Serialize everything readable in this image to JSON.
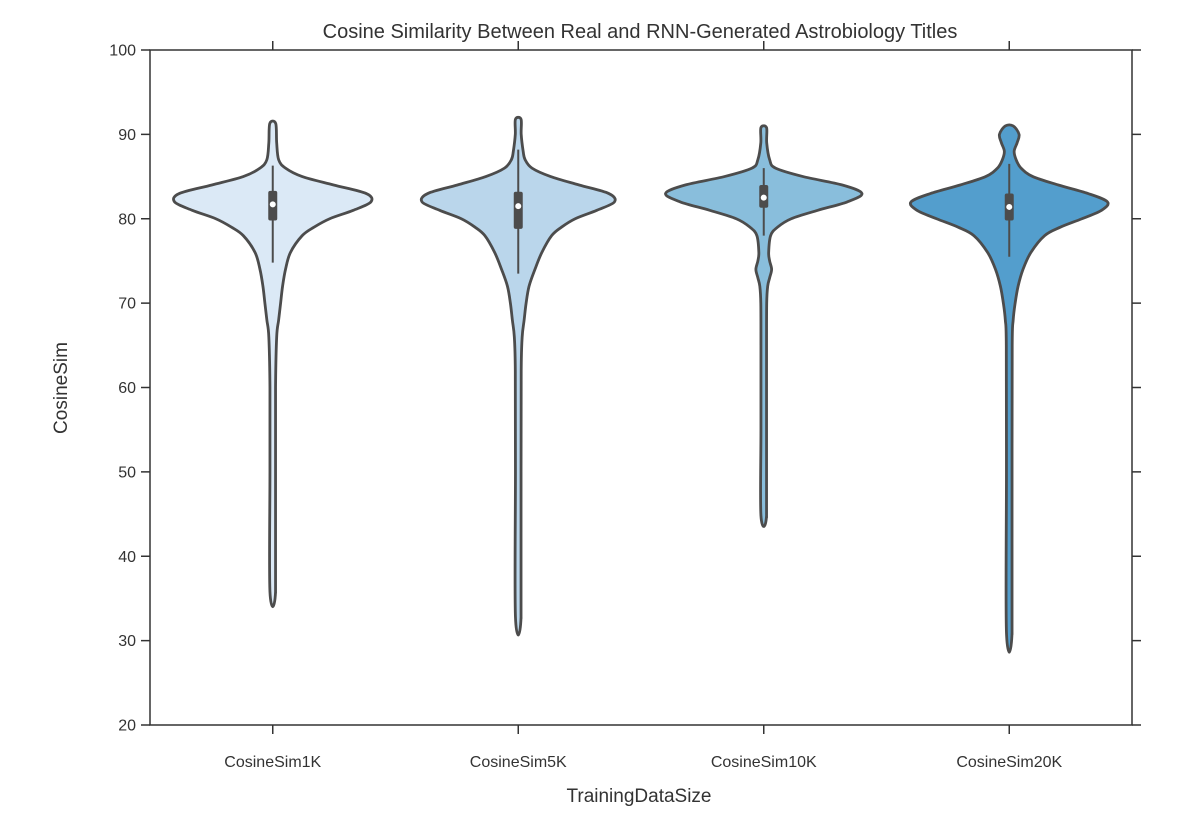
{
  "chart_data": {
    "type": "violin",
    "title": "Cosine Similarity Between Real and RNN-Generated Astrobiology Titles",
    "xlabel": "TrainingDataSize",
    "ylabel": "CosineSim",
    "ylim": [
      20,
      100
    ],
    "yticks": [
      20,
      30,
      40,
      50,
      60,
      70,
      80,
      90,
      100
    ],
    "grid": false,
    "categories": [
      "CosineSim1K",
      "CosineSim5K",
      "CosineSim10K",
      "CosineSim20K"
    ],
    "series": [
      {
        "category": "CosineSim1K",
        "min": 35.8,
        "max": 91.3,
        "q1": 79.8,
        "median": 81.7,
        "q3": 83.3,
        "whisker_low": 74.8,
        "whisker_high": 86.3,
        "color": "#dbe9f6",
        "density": [
          [
            35.8,
            0.02
          ],
          [
            50,
            0.02
          ],
          [
            60,
            0.025
          ],
          [
            66,
            0.04
          ],
          [
            68,
            0.06
          ],
          [
            70,
            0.08
          ],
          [
            72,
            0.1
          ],
          [
            74,
            0.13
          ],
          [
            76,
            0.18
          ],
          [
            78,
            0.3
          ],
          [
            79,
            0.42
          ],
          [
            80,
            0.58
          ],
          [
            81,
            0.82
          ],
          [
            82,
            1.0
          ],
          [
            83,
            0.95
          ],
          [
            84,
            0.62
          ],
          [
            85,
            0.3
          ],
          [
            86,
            0.13
          ],
          [
            87,
            0.06
          ],
          [
            89,
            0.04
          ],
          [
            91.3,
            0.03
          ]
        ]
      },
      {
        "category": "CosineSim5K",
        "min": 32.8,
        "max": 91.8,
        "q1": 78.8,
        "median": 81.5,
        "q3": 83.2,
        "whisker_low": 73.5,
        "whisker_high": 88.2,
        "color": "#bad6eb",
        "density": [
          [
            32.8,
            0.02
          ],
          [
            50,
            0.02
          ],
          [
            62,
            0.03
          ],
          [
            66,
            0.04
          ],
          [
            68,
            0.06
          ],
          [
            70,
            0.08
          ],
          [
            72,
            0.11
          ],
          [
            74,
            0.17
          ],
          [
            76,
            0.24
          ],
          [
            78,
            0.34
          ],
          [
            79,
            0.44
          ],
          [
            80,
            0.58
          ],
          [
            81,
            0.8
          ],
          [
            82,
            0.98
          ],
          [
            83,
            0.92
          ],
          [
            84,
            0.62
          ],
          [
            85,
            0.33
          ],
          [
            86,
            0.14
          ],
          [
            87,
            0.07
          ],
          [
            88,
            0.05
          ],
          [
            90,
            0.03
          ],
          [
            91.8,
            0.02
          ]
        ]
      },
      {
        "category": "CosineSim10K",
        "min": 44.8,
        "max": 90.8,
        "q1": 81.3,
        "median": 82.5,
        "q3": 84.0,
        "whisker_low": 78.0,
        "whisker_high": 86.0,
        "color": "#89bedc",
        "density": [
          [
            44.8,
            0.02
          ],
          [
            55,
            0.02
          ],
          [
            65,
            0.025
          ],
          [
            70,
            0.03
          ],
          [
            72,
            0.04
          ],
          [
            73,
            0.06
          ],
          [
            74,
            0.08
          ],
          [
            75,
            0.06
          ],
          [
            76,
            0.05
          ],
          [
            78,
            0.07
          ],
          [
            79,
            0.14
          ],
          [
            80,
            0.28
          ],
          [
            81,
            0.55
          ],
          [
            82,
            0.85
          ],
          [
            83,
            1.0
          ],
          [
            84,
            0.8
          ],
          [
            85,
            0.4
          ],
          [
            86,
            0.12
          ],
          [
            87,
            0.06
          ],
          [
            89,
            0.03
          ],
          [
            90.8,
            0.02
          ]
        ]
      },
      {
        "category": "CosineSim20K",
        "min": 31.0,
        "max": 91.0,
        "q1": 79.8,
        "median": 81.4,
        "q3": 83.0,
        "whisker_low": 75.5,
        "whisker_high": 86.5,
        "color": "#539ecd",
        "density": [
          [
            31.0,
            0.02
          ],
          [
            50,
            0.02
          ],
          [
            65,
            0.03
          ],
          [
            68,
            0.04
          ],
          [
            70,
            0.06
          ],
          [
            72,
            0.09
          ],
          [
            74,
            0.14
          ],
          [
            76,
            0.22
          ],
          [
            78,
            0.36
          ],
          [
            79,
            0.52
          ],
          [
            80,
            0.74
          ],
          [
            81,
            0.94
          ],
          [
            82,
            1.0
          ],
          [
            83,
            0.8
          ],
          [
            84,
            0.5
          ],
          [
            85,
            0.24
          ],
          [
            86,
            0.12
          ],
          [
            87,
            0.07
          ],
          [
            88,
            0.05
          ],
          [
            89,
            0.08
          ],
          [
            90,
            0.1
          ],
          [
            91,
            0.04
          ]
        ]
      }
    ]
  }
}
